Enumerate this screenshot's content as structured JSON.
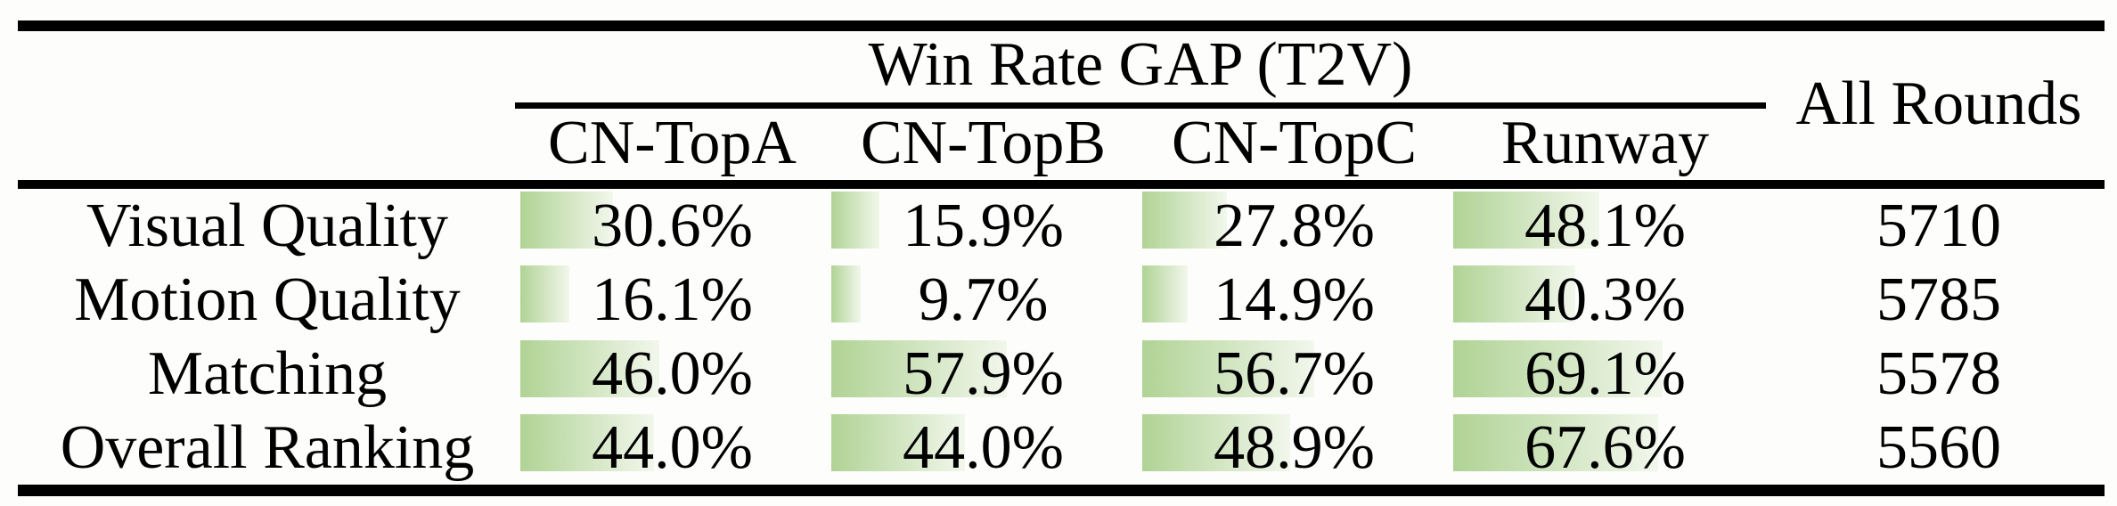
{
  "table": {
    "group_header": "Win Rate GAP (T2V)",
    "all_rounds_header": "All Rounds",
    "columns": [
      "CN-TopA",
      "CN-TopB",
      "CN-TopC",
      "Runway"
    ],
    "rows": [
      {
        "label": "Visual Quality",
        "cells": [
          {
            "text": "30.6%",
            "value": 30.6
          },
          {
            "text": "15.9%",
            "value": 15.9
          },
          {
            "text": "27.8%",
            "value": 27.8
          },
          {
            "text": "48.1%",
            "value": 48.1
          }
        ],
        "all_rounds": "5710"
      },
      {
        "label": "Motion Quality",
        "cells": [
          {
            "text": "16.1%",
            "value": 16.1
          },
          {
            "text": "9.7%",
            "value": 9.7
          },
          {
            "text": "14.9%",
            "value": 14.9
          },
          {
            "text": "40.3%",
            "value": 40.3
          }
        ],
        "all_rounds": "5785"
      },
      {
        "label": "Matching",
        "cells": [
          {
            "text": "46.0%",
            "value": 46.0
          },
          {
            "text": "57.9%",
            "value": 57.9
          },
          {
            "text": "56.7%",
            "value": 56.7
          },
          {
            "text": "69.1%",
            "value": 69.1
          }
        ],
        "all_rounds": "5578"
      },
      {
        "label": "Overall Ranking",
        "cells": [
          {
            "text": "44.0%",
            "value": 44.0
          },
          {
            "text": "44.0%",
            "value": 44.0
          },
          {
            "text": "48.9%",
            "value": 48.9
          },
          {
            "text": "67.6%",
            "value": 67.6
          }
        ],
        "all_rounds": "5560"
      }
    ]
  },
  "colors": {
    "bar_gradient_start": "#b0d395",
    "bar_gradient_end": "#f2f7ec",
    "rule": "#000000",
    "text": "#000000",
    "background": "#fdfdfc"
  },
  "chart_data": {
    "type": "table",
    "title": "Win Rate GAP (T2V)",
    "categories": [
      "Visual Quality",
      "Motion Quality",
      "Matching",
      "Overall Ranking"
    ],
    "series": [
      {
        "name": "CN-TopA",
        "values": [
          30.6,
          16.1,
          46.0,
          44.0
        ]
      },
      {
        "name": "CN-TopB",
        "values": [
          15.9,
          9.7,
          57.9,
          44.0
        ]
      },
      {
        "name": "CN-TopC",
        "values": [
          27.8,
          14.9,
          56.7,
          48.9
        ]
      },
      {
        "name": "Runway",
        "values": [
          48.1,
          40.3,
          69.1,
          67.6
        ]
      }
    ],
    "all_rounds": {
      "label": "All Rounds",
      "values": [
        5710,
        5785,
        5578,
        5560
      ]
    },
    "unit": "%",
    "layout": "win-rate bars drawn left-anchored behind centered percentage text"
  }
}
